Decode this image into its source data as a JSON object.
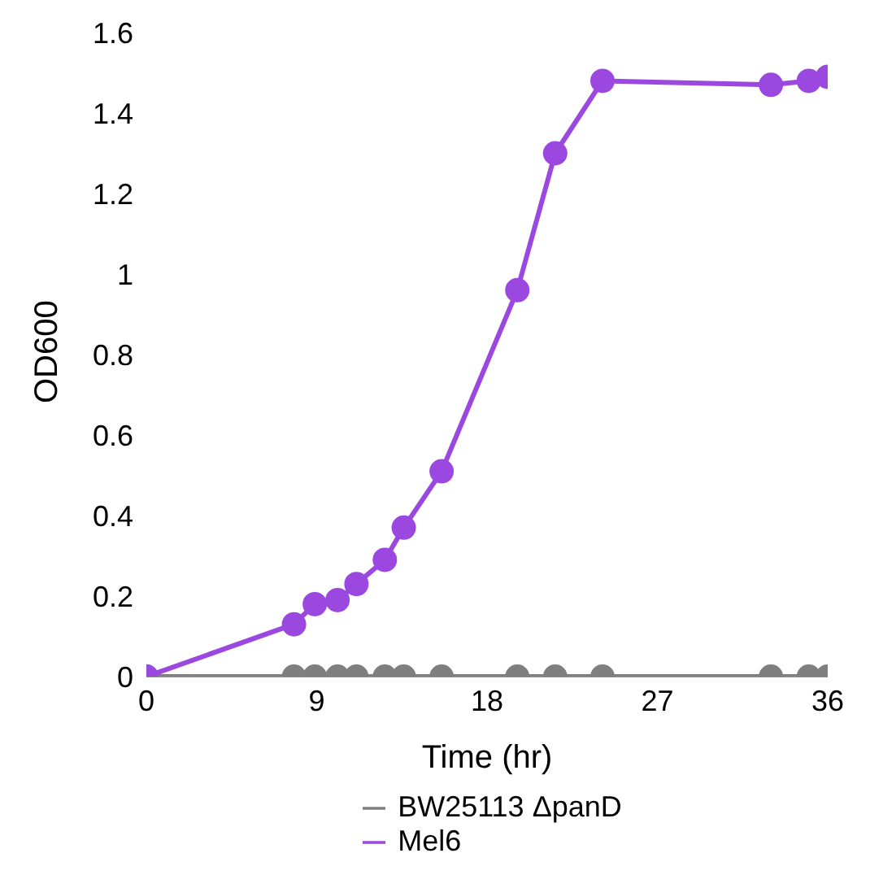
{
  "chart_data": {
    "type": "line",
    "xlabel": "Time (hr)",
    "ylabel": "OD600",
    "xlim": [
      0,
      36
    ],
    "xticks": [
      0,
      9,
      18,
      27,
      36
    ],
    "ylim": [
      0,
      1.6
    ],
    "yticks": [
      0,
      0.2,
      0.4,
      0.6,
      0.8,
      1,
      1.2,
      1.4,
      1.6
    ],
    "grid": false,
    "legend": "bottom",
    "marker": "circle",
    "line_style": "solid",
    "x": [
      0,
      7.8,
      8.9,
      10.1,
      11.1,
      12.6,
      13.6,
      15.6,
      19.6,
      21.6,
      24.1,
      33,
      35,
      36
    ],
    "series": [
      {
        "name": "BW25113 ΔpanD",
        "color": "#7f7f7f",
        "values": [
          0,
          0,
          0,
          0,
          0,
          0,
          0,
          0,
          0,
          0,
          0,
          0,
          0,
          0
        ]
      },
      {
        "name": "Mel6",
        "color": "#9b48e0",
        "values": [
          0,
          0.13,
          0.18,
          0.19,
          0.23,
          0.29,
          0.37,
          0.51,
          0.96,
          1.3,
          1.48,
          1.47,
          1.48,
          1.49
        ]
      }
    ]
  }
}
